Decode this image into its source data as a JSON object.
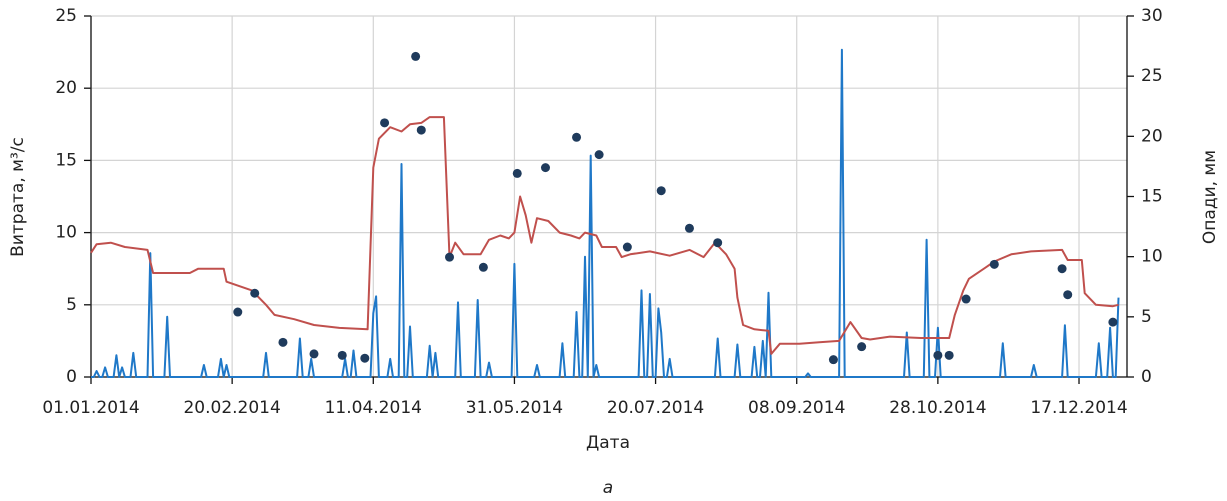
{
  "chart_data": {
    "type": "line",
    "xlabel": "Дата",
    "ylabel": "Витрата, м³/с",
    "y2label": "Опади, мм",
    "caption": "а",
    "xlim": [
      "01.01.2014",
      "03.01.2015"
    ],
    "xticks": [
      "01.01.2014",
      "20.02.2014",
      "11.04.2014",
      "31.05.2014",
      "20.07.2014",
      "08.09.2014",
      "28.10.2014",
      "17.12.2014"
    ],
    "ylim": [
      0,
      25
    ],
    "yticks": [
      0,
      5,
      10,
      15,
      20,
      25
    ],
    "y2lim": [
      0,
      30
    ],
    "y2ticks": [
      0,
      5,
      10,
      15,
      20,
      25,
      30
    ],
    "grid": true,
    "series": [
      {
        "type": "line",
        "color": "#1f78c8",
        "axis": "y2",
        "x": [
          "01.01.2014",
          "02.01.2014",
          "03.01.2014",
          "04.01.2014",
          "05.01.2014",
          "06.01.2014",
          "07.01.2014",
          "09.01.2014",
          "10.01.2014",
          "11.01.2014",
          "12.01.2014",
          "13.01.2014",
          "15.01.2014",
          "16.01.2014",
          "17.01.2014",
          "21.01.2014",
          "22.01.2014",
          "23.01.2014",
          "27.01.2014",
          "28.01.2014",
          "29.01.2014",
          "09.02.2014",
          "10.02.2014",
          "11.02.2014",
          "15.02.2014",
          "16.02.2014",
          "17.02.2014",
          "18.02.2014",
          "19.02.2014",
          "03.03.2014",
          "04.03.2014",
          "05.03.2014",
          "15.03.2014",
          "16.03.2014",
          "17.03.2014",
          "19.03.2014",
          "20.03.2014",
          "21.03.2014",
          "31.03.2014",
          "01.04.2014",
          "02.04.2014",
          "03.04.2014",
          "04.04.2014",
          "05.04.2014",
          "10.04.2014",
          "11.04.2014",
          "12.04.2014",
          "13.04.2014",
          "16.04.2014",
          "17.04.2014",
          "18.04.2014",
          "20.04.2014",
          "21.04.2014",
          "22.04.2014",
          "23.04.2014",
          "24.04.2014",
          "25.04.2014",
          "30.04.2014",
          "01.05.2014",
          "02.05.2014",
          "03.05.2014",
          "04.05.2014",
          "10.05.2014",
          "11.05.2014",
          "12.05.2014",
          "17.05.2014",
          "18.05.2014",
          "19.05.2014",
          "21.05.2014",
          "22.05.2014",
          "23.05.2014",
          "30.05.2014",
          "31.05.2014",
          "01.06.2014",
          "07.06.2014",
          "08.06.2014",
          "09.06.2014",
          "16.06.2014",
          "17.06.2014",
          "18.06.2014",
          "21.06.2014",
          "22.06.2014",
          "23.06.2014",
          "24.06.2014",
          "25.06.2014",
          "26.06.2014",
          "27.06.2014",
          "28.06.2014",
          "29.06.2014",
          "30.06.2014",
          "14.07.2014",
          "15.07.2014",
          "16.07.2014",
          "17.07.2014",
          "18.07.2014",
          "19.07.2014",
          "20.07.2014",
          "21.07.2014",
          "22.07.2014",
          "23.07.2014",
          "24.07.2014",
          "25.07.2014",
          "26.07.2014",
          "10.08.2014",
          "11.08.2014",
          "12.08.2014",
          "17.08.2014",
          "18.08.2014",
          "19.08.2014",
          "23.08.2014",
          "24.08.2014",
          "25.08.2014",
          "26.08.2014",
          "27.08.2014",
          "28.08.2014",
          "29.08.2014",
          "30.08.2014",
          "11.09.2014",
          "12.09.2014",
          "13.09.2014",
          "23.09.2014",
          "24.09.2014",
          "25.09.2014",
          "16.10.2014",
          "17.10.2014",
          "18.10.2014",
          "23.10.2014",
          "24.10.2014",
          "25.10.2014",
          "27.10.2014",
          "28.10.2014",
          "29.10.2014",
          "19.11.2014",
          "20.11.2014",
          "21.11.2014",
          "30.11.2014",
          "01.12.2014",
          "02.12.2014",
          "11.12.2014",
          "12.12.2014",
          "13.12.2014",
          "23.12.2014",
          "24.12.2014",
          "25.12.2014",
          "27.12.2014",
          "28.12.2014",
          "29.12.2014",
          "30.12.2014",
          "31.12.2014"
        ],
        "values": [
          0,
          0,
          0.5,
          0,
          0,
          0.8,
          0,
          0,
          1.8,
          0,
          0.8,
          0,
          0,
          2,
          0,
          0,
          10.3,
          0,
          0,
          5,
          0,
          0,
          1,
          0,
          0,
          1.5,
          0,
          1,
          0,
          0,
          2,
          0,
          0,
          3.2,
          0,
          0,
          1.5,
          0,
          0,
          1.5,
          0,
          0,
          2.2,
          0,
          0,
          5.3,
          6.7,
          0,
          0,
          1.5,
          0,
          0,
          17.7,
          0,
          0,
          4.2,
          0,
          0,
          2.6,
          0,
          2,
          0,
          0,
          6.2,
          0,
          0,
          6.4,
          0,
          0,
          1.2,
          0,
          0,
          9.4,
          0,
          0,
          1,
          0,
          0,
          2.8,
          0,
          0,
          5.4,
          0,
          0,
          10,
          0,
          18.4,
          0,
          1,
          0,
          0,
          7.2,
          0,
          0,
          6.9,
          0,
          0,
          5.7,
          3.7,
          0,
          0,
          1.5,
          0,
          0,
          3.2,
          0,
          0,
          2.7,
          0,
          0,
          2.5,
          0,
          0,
          3,
          0,
          7,
          0,
          0,
          0.3,
          0,
          0,
          27.2,
          0,
          0,
          3.7,
          0,
          0,
          11.4,
          0,
          0,
          4.1,
          0,
          0,
          2.8,
          0,
          0,
          1,
          0,
          0,
          4.3,
          0,
          0,
          2.8,
          0,
          0,
          4.1,
          0,
          0,
          6.6
        ]
      },
      {
        "type": "line",
        "color": "#c0504d",
        "axis": "y",
        "x": [
          "01.01.2014",
          "03.01.2014",
          "08.01.2014",
          "13.01.2014",
          "21.01.2014",
          "23.01.2014",
          "05.02.2014",
          "08.02.2014",
          "17.02.2014",
          "18.02.2014",
          "27.02.2014",
          "04.03.2014",
          "07.03.2014",
          "14.03.2014",
          "21.03.2014",
          "30.03.2014",
          "09.04.2014",
          "11.04.2014",
          "13.04.2014",
          "17.04.2014",
          "21.04.2014",
          "24.04.2014",
          "28.04.2014",
          "01.05.2014",
          "06.05.2014",
          "08.05.2014",
          "10.05.2014",
          "13.05.2014",
          "19.05.2014",
          "22.05.2014",
          "26.05.2014",
          "29.05.2014",
          "31.05.2014",
          "02.06.2014",
          "04.06.2014",
          "06.06.2014",
          "08.06.2014",
          "12.06.2014",
          "16.06.2014",
          "20.06.2014",
          "23.06.2014",
          "25.06.2014",
          "29.06.2014",
          "01.07.2014",
          "06.07.2014",
          "08.07.2014",
          "11.07.2014",
          "18.07.2014",
          "25.07.2014",
          "01.08.2014",
          "06.08.2014",
          "10.08.2014",
          "14.08.2014",
          "17.08.2014",
          "18.08.2014",
          "20.08.2014",
          "24.08.2014",
          "29.08.2014",
          "30.08.2014",
          "02.09.2014",
          "09.09.2014",
          "16.09.2014",
          "23.09.2014",
          "27.09.2014",
          "01.10.2014",
          "04.10.2014",
          "11.10.2014",
          "22.10.2014",
          "01.11.2014",
          "03.11.2014",
          "06.11.2014",
          "08.11.2014",
          "14.11.2014",
          "17.11.2014",
          "23.11.2014",
          "30.11.2014",
          "11.12.2014",
          "13.12.2014",
          "18.12.2014",
          "19.12.2014",
          "23.12.2014",
          "29.12.2014",
          "31.12.2014"
        ],
        "values": [
          8.6,
          9.2,
          9.3,
          9.0,
          8.8,
          7.2,
          7.2,
          7.5,
          7.5,
          6.6,
          6.0,
          5.0,
          4.3,
          4.0,
          3.6,
          3.4,
          3.3,
          14.5,
          16.5,
          17.3,
          17.0,
          17.5,
          17.6,
          18.0,
          18.0,
          8.3,
          9.3,
          8.5,
          8.5,
          9.5,
          9.8,
          9.6,
          10.0,
          12.5,
          11.2,
          9.3,
          11.0,
          10.8,
          10.0,
          9.8,
          9.6,
          10.0,
          9.8,
          9.0,
          9.0,
          8.3,
          8.5,
          8.7,
          8.4,
          8.8,
          8.3,
          9.3,
          8.5,
          7.5,
          5.5,
          3.6,
          3.3,
          3.2,
          1.6,
          2.3,
          2.3,
          2.4,
          2.5,
          3.8,
          2.7,
          2.6,
          2.8,
          2.7,
          2.7,
          4.3,
          6.0,
          6.8,
          7.6,
          8.0,
          8.5,
          8.7,
          8.8,
          8.1,
          8.1,
          5.8,
          5.0,
          4.9,
          5.0
        ]
      },
      {
        "type": "scatter",
        "color": "#1f3b5c",
        "axis": "y",
        "x": [
          "22.02.2014",
          "28.02.2014",
          "10.03.2014",
          "21.03.2014",
          "31.03.2014",
          "08.04.2014",
          "15.04.2014",
          "26.04.2014",
          "28.04.2014",
          "08.05.2014",
          "20.05.2014",
          "01.06.2014",
          "11.06.2014",
          "22.06.2014",
          "30.06.2014",
          "10.07.2014",
          "22.07.2014",
          "01.08.2014",
          "11.08.2014",
          "21.09.2014",
          "01.10.2014",
          "28.10.2014",
          "01.11.2014",
          "07.11.2014",
          "17.11.2014",
          "11.12.2014",
          "13.12.2014",
          "29.12.2014"
        ],
        "values": [
          4.5,
          5.8,
          2.4,
          1.6,
          1.5,
          1.3,
          17.6,
          22.2,
          17.1,
          8.3,
          7.6,
          14.1,
          14.5,
          16.6,
          15.4,
          9.0,
          12.9,
          10.3,
          9.3,
          1.2,
          2.1,
          1.5,
          1.5,
          5.4,
          7.8,
          7.5,
          5.7,
          3.8
        ]
      }
    ]
  }
}
